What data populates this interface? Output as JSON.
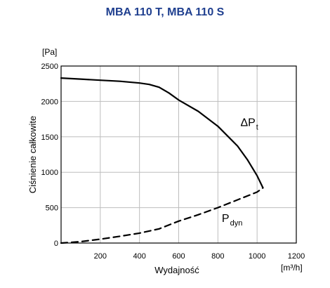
{
  "chart_data": {
    "type": "line",
    "title": "MBA 110 T, MBA 110 S",
    "xlabel": "Wydajność",
    "ylabel": "Ciśnienie całkowite",
    "x_unit": "[m³/h]",
    "y_unit": "[Pa]",
    "xlim": [
      0,
      1200
    ],
    "ylim": [
      0,
      2500
    ],
    "x_ticks": [
      "200",
      "400",
      "600",
      "800",
      "1000",
      "1200"
    ],
    "y_ticks": [
      "0",
      "500",
      "1000",
      "1500",
      "2000",
      "2500"
    ],
    "grid": true,
    "series": [
      {
        "name": "ΔPt",
        "label_main": "ΔP",
        "label_sub": "t",
        "style": "solid",
        "color": "#000000",
        "x": [
          0,
          100,
          200,
          300,
          400,
          450,
          500,
          550,
          600,
          700,
          800,
          900,
          950,
          1000,
          1030
        ],
        "y": [
          2330,
          2315,
          2300,
          2285,
          2260,
          2240,
          2200,
          2120,
          2020,
          1860,
          1650,
          1370,
          1180,
          950,
          780
        ]
      },
      {
        "name": "Pdyn",
        "label_main": "P",
        "label_sub": "dyn",
        "style": "dashed",
        "color": "#000000",
        "x": [
          0,
          100,
          200,
          300,
          400,
          500,
          600,
          700,
          800,
          900,
          1000,
          1030
        ],
        "y": [
          0,
          20,
          55,
          95,
          140,
          200,
          310,
          400,
          500,
          610,
          720,
          780
        ]
      }
    ]
  }
}
